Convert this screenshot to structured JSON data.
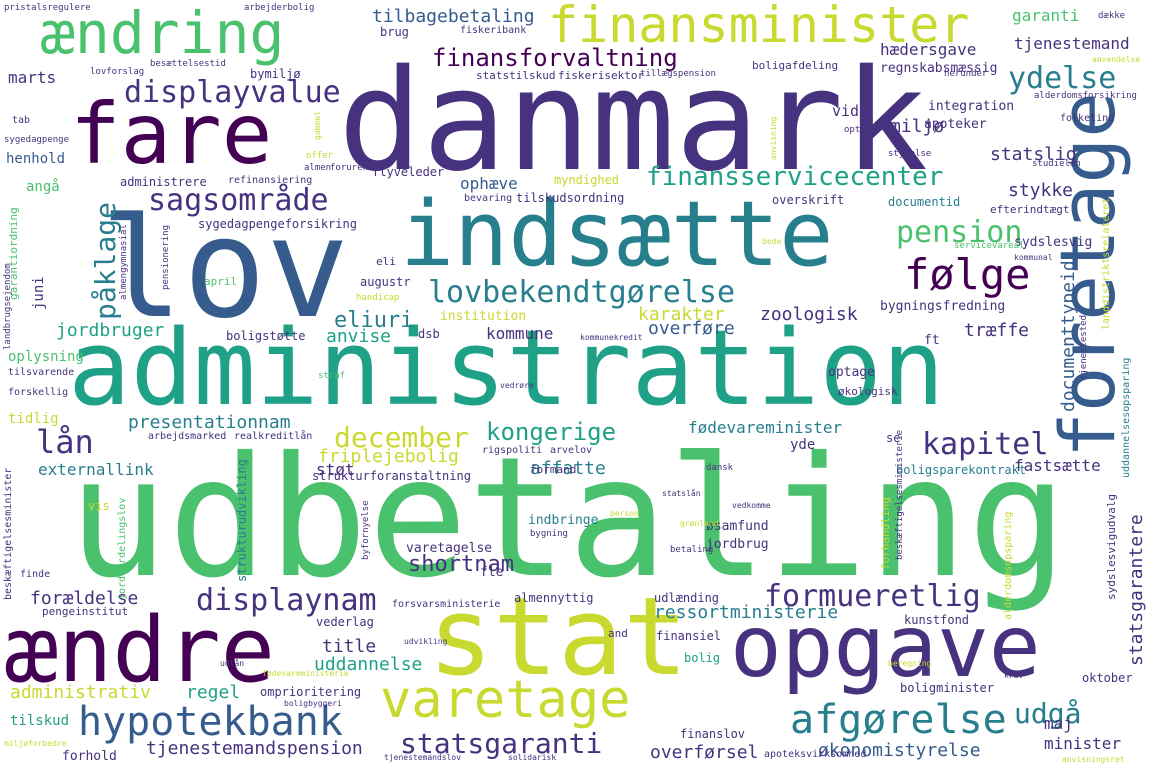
{
  "colors": {
    "background": "#ffffff",
    "palette": {
      "purple": "#440154",
      "indigo": "#46327e",
      "blue": "#365c8d",
      "teal": "#277f8e",
      "green": "#1fa187",
      "lime": "#4ac16d",
      "yellowgreen": "#a0da39",
      "yellow": "#c8d92f"
    }
  },
  "words": [
    {
      "text": "udbetaling",
      "color": "lime"
    },
    {
      "text": "danmark",
      "color": "indigo"
    },
    {
      "text": "administration",
      "color": "green"
    },
    {
      "text": "lov",
      "color": "blue"
    },
    {
      "text": "indsætte",
      "color": "teal"
    },
    {
      "text": "fare",
      "color": "purple"
    },
    {
      "text": "stat",
      "color": "yellow"
    },
    {
      "text": "opgave",
      "color": "indigo"
    },
    {
      "text": "ændre",
      "color": "purple"
    },
    {
      "text": "foretage",
      "color": "blue"
    },
    {
      "text": "ændring",
      "color": "lime"
    },
    {
      "text": "finansminister",
      "color": "yellow"
    },
    {
      "text": "varetage",
      "color": "yellow"
    },
    {
      "text": "hypotekbank",
      "color": "blue"
    },
    {
      "text": "afgørelse",
      "color": "teal"
    },
    {
      "text": "følge",
      "color": "purple"
    },
    {
      "text": "lovbekendtgørelse",
      "color": "teal"
    },
    {
      "text": "sagsområde",
      "color": "indigo"
    },
    {
      "text": "displayvalue",
      "color": "indigo"
    },
    {
      "text": "finansforvaltning",
      "color": "purple"
    },
    {
      "text": "finansservicecenter",
      "color": "green"
    },
    {
      "text": "pension",
      "color": "lime"
    },
    {
      "text": "påklage",
      "color": "teal"
    },
    {
      "text": "ydelse",
      "color": "teal"
    },
    {
      "text": "lån",
      "color": "indigo"
    },
    {
      "text": "december",
      "color": "yellow"
    },
    {
      "text": "kongerige",
      "color": "green"
    },
    {
      "text": "kapitel",
      "color": "indigo"
    },
    {
      "text": "displaynam",
      "color": "indigo"
    },
    {
      "text": "formueretlig",
      "color": "indigo"
    },
    {
      "text": "statsgaranti",
      "color": "indigo"
    },
    {
      "text": "udgå",
      "color": "teal"
    },
    {
      "text": "garanti",
      "color": "lime"
    },
    {
      "text": "tjenestemand",
      "color": "indigo"
    },
    {
      "text": "hædersgave",
      "color": "indigo"
    },
    {
      "text": "tilbagebetaling",
      "color": "blue"
    },
    {
      "text": "shortnam",
      "color": "indigo"
    },
    {
      "text": "eliuri",
      "color": "teal"
    },
    {
      "text": "anvise",
      "color": "green"
    },
    {
      "text": "kommune",
      "color": "indigo"
    },
    {
      "text": "karakter",
      "color": "yellow"
    },
    {
      "text": "zoologisk",
      "color": "indigo"
    },
    {
      "text": "jordbruger",
      "color": "green"
    },
    {
      "text": "tjenestemandspension",
      "color": "indigo"
    },
    {
      "text": "administrativ",
      "color": "yellow"
    },
    {
      "text": "regel",
      "color": "green"
    },
    {
      "text": "uddannelse",
      "color": "green"
    },
    {
      "text": "title",
      "color": "indigo"
    },
    {
      "text": "forældelse",
      "color": "indigo"
    },
    {
      "text": "ressortministerie",
      "color": "teal"
    },
    {
      "text": "presentationnam",
      "color": "teal"
    },
    {
      "text": "fødevareminister",
      "color": "teal"
    },
    {
      "text": "fastsætte",
      "color": "indigo"
    },
    {
      "text": "stykke",
      "color": "indigo"
    },
    {
      "text": "statslig",
      "color": "indigo"
    },
    {
      "text": "miljø",
      "color": "indigo"
    },
    {
      "text": "friplejebolig",
      "color": "yellow"
    },
    {
      "text": "affatte",
      "color": "teal"
    },
    {
      "text": "externallink",
      "color": "teal"
    },
    {
      "text": "støt",
      "color": "indigo"
    },
    {
      "text": "ophæve",
      "color": "blue"
    },
    {
      "text": "overføre",
      "color": "blue"
    },
    {
      "text": "træffe",
      "color": "indigo"
    },
    {
      "text": "overførsel",
      "color": "indigo"
    },
    {
      "text": "økonomistyrelse",
      "color": "blue"
    },
    {
      "text": "minister",
      "color": "indigo"
    },
    {
      "text": "maj",
      "color": "indigo"
    },
    {
      "text": "displayvalue",
      "color": "indigo"
    },
    {
      "text": "documenttypeid",
      "color": "blue"
    },
    {
      "text": "statsgarantere",
      "color": "indigo"
    },
    {
      "text": "regnskabsmæssig",
      "color": "indigo"
    },
    {
      "text": "vid",
      "color": "indigo"
    },
    {
      "text": "integration",
      "color": "indigo"
    },
    {
      "text": "apoteker",
      "color": "indigo"
    },
    {
      "text": "marts",
      "color": "indigo"
    },
    {
      "text": "bymiljø",
      "color": "indigo"
    },
    {
      "text": "henhold",
      "color": "blue"
    },
    {
      "text": "angå",
      "color": "lime"
    },
    {
      "text": "juni",
      "color": "indigo"
    },
    {
      "text": "administrere",
      "color": "indigo"
    },
    {
      "text": "refinansiering",
      "color": "indigo"
    },
    {
      "text": "flyveleder",
      "color": "indigo"
    },
    {
      "text": "sygedagpengeforsikring",
      "color": "indigo"
    },
    {
      "text": "myndighed",
      "color": "yellow"
    },
    {
      "text": "tilskudsordning",
      "color": "indigo"
    },
    {
      "text": "overskrift",
      "color": "indigo"
    },
    {
      "text": "documentid",
      "color": "teal"
    },
    {
      "text": "efterindtægt",
      "color": "indigo"
    },
    {
      "text": "sydslesvig",
      "color": "indigo"
    },
    {
      "text": "servicevareal",
      "color": "lime"
    },
    {
      "text": "bygningsfredning",
      "color": "indigo"
    },
    {
      "text": "ft",
      "color": "indigo"
    },
    {
      "text": "optage",
      "color": "indigo"
    },
    {
      "text": "økologisk",
      "color": "indigo"
    },
    {
      "text": "augustr",
      "color": "indigo"
    },
    {
      "text": "institution",
      "color": "yellow"
    },
    {
      "text": "dsb",
      "color": "indigo"
    },
    {
      "text": "boligstøtte",
      "color": "indigo"
    },
    {
      "text": "oplysning",
      "color": "lime"
    },
    {
      "text": "tilsvarende",
      "color": "indigo"
    },
    {
      "text": "forskellig",
      "color": "indigo"
    },
    {
      "text": "tidlig",
      "color": "yellow"
    },
    {
      "text": "arbejdsmarked",
      "color": "indigo"
    },
    {
      "text": "realkreditlån",
      "color": "indigo"
    },
    {
      "text": "rigspoliti",
      "color": "indigo"
    },
    {
      "text": "arvelov",
      "color": "indigo"
    },
    {
      "text": "strukturforanstaltning",
      "color": "indigo"
    },
    {
      "text": "formand",
      "color": "indigo"
    },
    {
      "text": "dansk",
      "color": "indigo"
    },
    {
      "text": "boligsparekontrakt",
      "color": "teal"
    },
    {
      "text": "yde",
      "color": "indigo"
    },
    {
      "text": "se",
      "color": "indigo"
    },
    {
      "text": "indbringe",
      "color": "teal"
    },
    {
      "text": "øsamfund",
      "color": "indigo"
    },
    {
      "text": "jordbrug",
      "color": "indigo"
    },
    {
      "text": "varetagelse",
      "color": "indigo"
    },
    {
      "text": "fle",
      "color": "indigo"
    },
    {
      "text": "almennyttig",
      "color": "indigo"
    },
    {
      "text": "udlænding",
      "color": "indigo"
    },
    {
      "text": "forsvarsministerie",
      "color": "indigo"
    },
    {
      "text": "kunstfond",
      "color": "indigo"
    },
    {
      "text": "finansiel",
      "color": "indigo"
    },
    {
      "text": "and",
      "color": "indigo"
    },
    {
      "text": "bolig",
      "color": "green"
    },
    {
      "text": "omprioritering",
      "color": "indigo"
    },
    {
      "text": "boligminister",
      "color": "indigo"
    },
    {
      "text": "oktober",
      "color": "indigo"
    },
    {
      "text": "finanslov",
      "color": "indigo"
    },
    {
      "text": "apoteksvirksomhed",
      "color": "indigo"
    },
    {
      "text": "tilskud",
      "color": "green"
    },
    {
      "text": "forhold",
      "color": "indigo"
    },
    {
      "text": "vederlag",
      "color": "indigo"
    },
    {
      "text": "pengeinstitut",
      "color": "indigo"
    },
    {
      "text": "finde",
      "color": "indigo"
    },
    {
      "text": "vis",
      "color": "yellow"
    },
    {
      "text": "brug",
      "color": "indigo"
    },
    {
      "text": "fiskeribank",
      "color": "indigo"
    },
    {
      "text": "statstilskud",
      "color": "indigo"
    },
    {
      "text": "fiskerisektor",
      "color": "indigo"
    },
    {
      "text": "tillægspension",
      "color": "indigo"
    },
    {
      "text": "boligafdeling",
      "color": "indigo"
    },
    {
      "text": "lovforslag",
      "color": "indigo"
    },
    {
      "text": "besættelsestid",
      "color": "indigo"
    },
    {
      "text": "tab",
      "color": "indigo"
    },
    {
      "text": "sygedagpenge",
      "color": "indigo"
    },
    {
      "text": "pristalsregulere",
      "color": "indigo"
    },
    {
      "text": "arbejderbolig",
      "color": "indigo"
    },
    {
      "text": "dække",
      "color": "indigo"
    },
    {
      "text": "anvendelse",
      "color": "yellow"
    },
    {
      "text": "alderdomsforsikring",
      "color": "indigo"
    },
    {
      "text": "herunder",
      "color": "indigo"
    },
    {
      "text": "styrelse",
      "color": "indigo"
    },
    {
      "text": "studielån",
      "color": "indigo"
    },
    {
      "text": "almen",
      "color": "indigo"
    },
    {
      "text": "forurene",
      "color": "indigo"
    },
    {
      "text": "offer",
      "color": "yellow"
    },
    {
      "text": "bevaring",
      "color": "indigo"
    },
    {
      "text": "eli",
      "color": "indigo"
    },
    {
      "text": "april",
      "color": "lime"
    },
    {
      "text": "handicap",
      "color": "yellow"
    },
    {
      "text": "kommunekredit",
      "color": "indigo"
    },
    {
      "text": "straf",
      "color": "lime"
    },
    {
      "text": "vedrøre",
      "color": "indigo"
    },
    {
      "text": "person",
      "color": "yellow"
    },
    {
      "text": "grønland",
      "color": "yellow"
    },
    {
      "text": "bygning",
      "color": "indigo"
    },
    {
      "text": "betaling",
      "color": "indigo"
    },
    {
      "text": "vedkomme",
      "color": "indigo"
    },
    {
      "text": "statslån",
      "color": "indigo"
    },
    {
      "text": "udvikling",
      "color": "indigo"
    },
    {
      "text": "udlån",
      "color": "indigo"
    },
    {
      "text": "fødevareministerie",
      "color": "yellow"
    },
    {
      "text": "boligbyggeri",
      "color": "indigo"
    },
    {
      "text": "tjenestemandslov",
      "color": "indigo"
    },
    {
      "text": "solidarisk",
      "color": "indigo"
    },
    {
      "text": "beregning",
      "color": "yellow"
    },
    {
      "text": "krav",
      "color": "indigo"
    },
    {
      "text": "anvisningsret",
      "color": "yellow"
    },
    {
      "text": "miljøforbedre",
      "color": "yellow"
    },
    {
      "text": "folketing",
      "color": "indigo"
    },
    {
      "text": "optag",
      "color": "indigo"
    },
    {
      "text": "kommunal",
      "color": "indigo"
    },
    {
      "text": "bede",
      "color": "yellow"
    },
    {
      "text": "beskæftigelsesminister",
      "color": "indigo"
    },
    {
      "text": "jordfordelingslov",
      "color": "lime"
    },
    {
      "text": "strukturudvikling",
      "color": "teal"
    },
    {
      "text": "byfornyelse",
      "color": "indigo"
    },
    {
      "text": "garantiordning",
      "color": "lime"
    },
    {
      "text": "landbrugsejendom",
      "color": "indigo"
    },
    {
      "text": "almengymnasial",
      "color": "indigo"
    },
    {
      "text": "pensionering",
      "color": "indigo"
    },
    {
      "text": "gammel",
      "color": "yellow"
    },
    {
      "text": "anvisning",
      "color": "yellow"
    },
    {
      "text": "forhandling",
      "color": "yellow"
    },
    {
      "text": "beskæftigelsesministerie",
      "color": "indigo"
    },
    {
      "text": "alderdomsopsparing",
      "color": "yellow"
    },
    {
      "text": "sydslesvigudvalg",
      "color": "indigo"
    },
    {
      "text": "landdistriktsrelateret",
      "color": "yellow"
    },
    {
      "text": "tjenestested",
      "color": "indigo"
    },
    {
      "text": "uddannelsesopsparing",
      "color": "teal"
    },
    {
      "text": "documenttypeid",
      "color": "blue"
    }
  ]
}
